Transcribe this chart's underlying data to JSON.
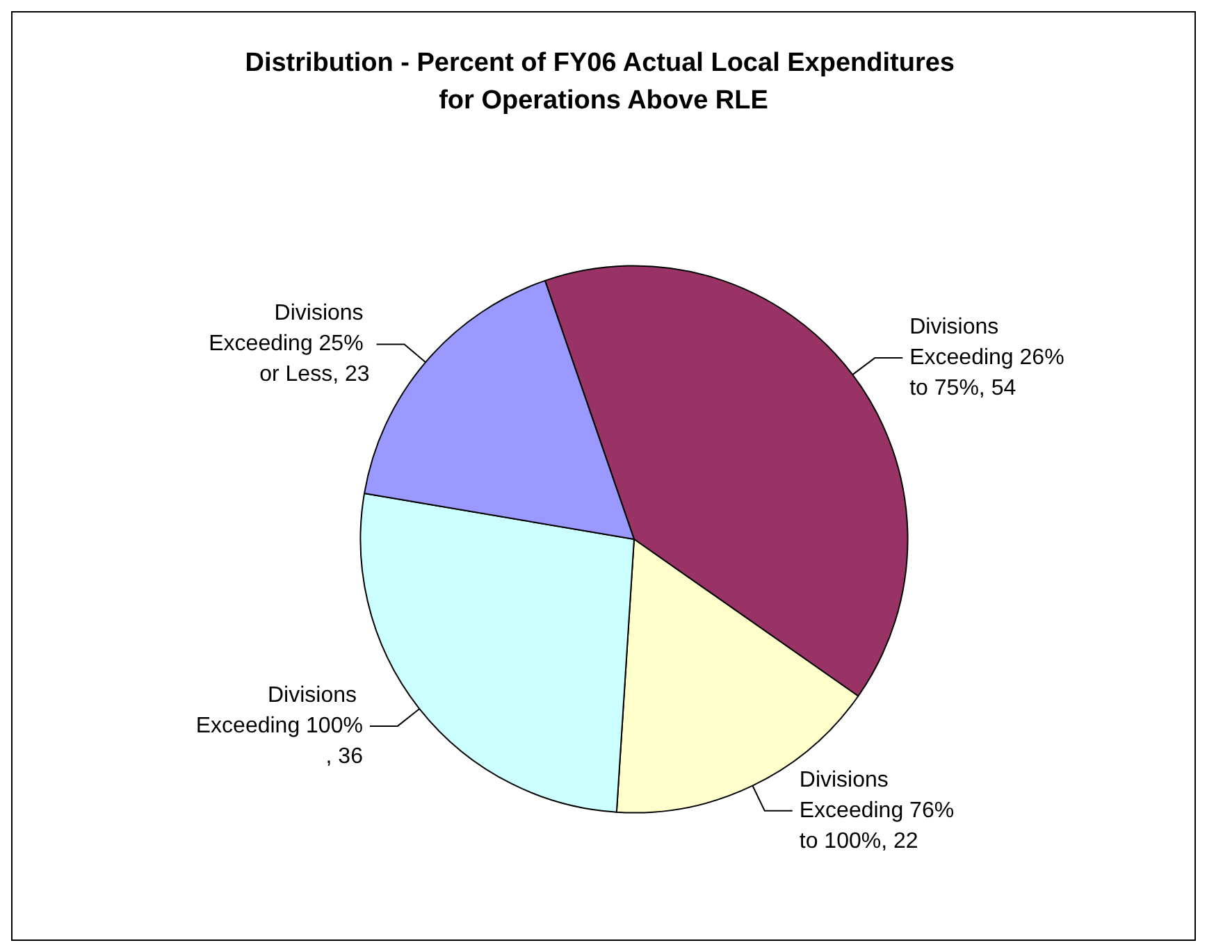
{
  "chart_data": {
    "type": "pie",
    "title": "Distribution - Percent of FY06 Actual Local Expenditures for Operations Above RLE",
    "categories": [
      "Divisions Exceeding 26% to 75%",
      "Divisions Exceeding 76% to 100%",
      "Divisions Exceeding 100%",
      "Divisions Exceeding 25% or Less"
    ],
    "values": [
      54,
      22,
      36,
      23
    ],
    "value_labels": [
      ", 54",
      ", 22",
      ", 36",
      ", 23"
    ],
    "colors": [
      "#993366",
      "#ffffcc",
      "#ccffff",
      "#9999ff"
    ],
    "legend": false
  }
}
